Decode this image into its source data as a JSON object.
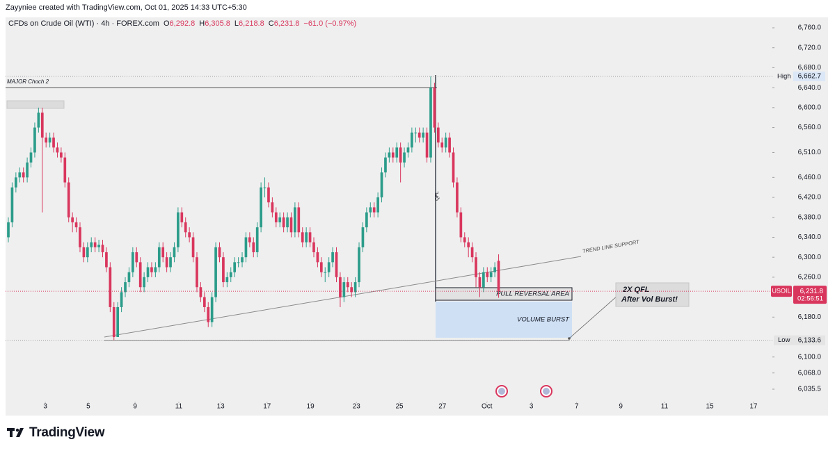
{
  "header": {
    "attribution": "Zayyniee created with TradingView.com, Oct 01, 2025 14:33 UTC+5:30",
    "symbol": "CFDs on Crude Oil (WTI) · 4h · FOREX.com",
    "ohlc": [
      {
        "key": "O",
        "value": "6,292.8"
      },
      {
        "key": "H",
        "value": "6,305.8"
      },
      {
        "key": "L",
        "value": "6,218.8"
      },
      {
        "key": "C",
        "value": "6,231.8"
      }
    ],
    "change": "−61.0 (−0.97%)"
  },
  "footer": {
    "brand": "TradingView"
  },
  "chart_data": {
    "type": "candlestick",
    "up_color": "#2b9c8a",
    "down_color": "#d9365d",
    "open": [
      6340,
      6370,
      6440,
      6460,
      6470,
      6460,
      6490,
      6510,
      6560,
      6590,
      6540,
      6530,
      6540,
      6520,
      6510,
      6500,
      6450,
      6380,
      6370,
      6360,
      6320,
      6300,
      6320,
      6330,
      6320,
      6325,
      6310,
      6280,
      6200,
      6140,
      6200,
      6230,
      6250,
      6270,
      6310,
      6290,
      6240,
      6260,
      6280,
      6270,
      6280,
      6320,
      6300,
      6280,
      6300,
      6320,
      6390,
      6370,
      6350,
      6340,
      6300,
      6240,
      6220,
      6200,
      6170,
      6220,
      6320,
      6300,
      6250,
      6260,
      6270,
      6290,
      6290,
      6300,
      6340,
      6330,
      6310,
      6360,
      6440,
      6440,
      6410,
      6390,
      6370,
      6380,
      6360,
      6380,
      6350,
      6400,
      6350,
      6330,
      6350,
      6330,
      6310,
      6290,
      6270,
      6270,
      6290,
      6310,
      6260,
      6220,
      6250,
      6240,
      6230,
      6250,
      6320,
      6360,
      6390,
      6400,
      6390,
      6420,
      6470,
      6500,
      6510,
      6500,
      6520,
      6490,
      6510,
      6520,
      6550,
      6550,
      6540,
      6550,
      6500,
      6640,
      6560,
      6530,
      6520,
      6540,
      6510,
      6450,
      6390,
      6340,
      6330,
      6320,
      6300,
      6260,
      6240,
      6270,
      6260,
      6270,
      6292.8
    ],
    "high": [
      6380,
      6450,
      6470,
      6480,
      6480,
      6500,
      6520,
      6570,
      6600,
      6600,
      6550,
      6550,
      6550,
      6530,
      6520,
      6510,
      6460,
      6390,
      6380,
      6370,
      6330,
      6330,
      6340,
      6340,
      6335,
      6335,
      6320,
      6290,
      6210,
      6210,
      6240,
      6260,
      6280,
      6320,
      6320,
      6300,
      6270,
      6290,
      6290,
      6290,
      6330,
      6330,
      6310,
      6310,
      6330,
      6400,
      6400,
      6380,
      6360,
      6350,
      6310,
      6250,
      6230,
      6210,
      6230,
      6330,
      6330,
      6310,
      6270,
      6280,
      6300,
      6300,
      6310,
      6350,
      6350,
      6340,
      6370,
      6450,
      6460,
      6450,
      6420,
      6400,
      6390,
      6390,
      6390,
      6390,
      6410,
      6410,
      6360,
      6360,
      6360,
      6340,
      6320,
      6300,
      6280,
      6300,
      6320,
      6320,
      6270,
      6260,
      6260,
      6250,
      6260,
      6330,
      6370,
      6400,
      6410,
      6410,
      6430,
      6480,
      6510,
      6520,
      6520,
      6530,
      6530,
      6520,
      6530,
      6560,
      6560,
      6560,
      6560,
      6560,
      6662.7,
      6650,
      6570,
      6540,
      6550,
      6550,
      6520,
      6460,
      6400,
      6350,
      6340,
      6330,
      6310,
      6270,
      6280,
      6280,
      6280,
      6290,
      6305.8
    ],
    "low": [
      6330,
      6360,
      6430,
      6450,
      6450,
      6450,
      6480,
      6500,
      6550,
      6390,
      6520,
      6520,
      6510,
      6500,
      6490,
      6440,
      6370,
      6350,
      6350,
      6310,
      6290,
      6290,
      6310,
      6310,
      6310,
      6300,
      6270,
      6190,
      6133.6,
      6140,
      6190,
      6220,
      6240,
      6260,
      6280,
      6230,
      6230,
      6250,
      6260,
      6260,
      6270,
      6290,
      6270,
      6270,
      6290,
      6310,
      6360,
      6340,
      6330,
      6290,
      6230,
      6210,
      6190,
      6160,
      6160,
      6210,
      6290,
      6240,
      6240,
      6250,
      6260,
      6280,
      6280,
      6290,
      6320,
      6300,
      6300,
      6350,
      6420,
      6400,
      6380,
      6360,
      6360,
      6350,
      6350,
      6340,
      6340,
      6340,
      6320,
      6320,
      6320,
      6300,
      6280,
      6260,
      6250,
      6260,
      6280,
      6250,
      6200,
      6210,
      6230,
      6220,
      6220,
      6240,
      6310,
      6350,
      6380,
      6380,
      6380,
      6410,
      6460,
      6490,
      6490,
      6490,
      6450,
      6480,
      6500,
      6510,
      6530,
      6530,
      6530,
      6490,
      6490,
      6550,
      6520,
      6510,
      6510,
      6500,
      6440,
      6380,
      6330,
      6320,
      6300,
      6290,
      6240,
      6220,
      6230,
      6250,
      6250,
      6260,
      6218.8
    ],
    "close": [
      6370,
      6440,
      6460,
      6470,
      6460,
      6490,
      6510,
      6560,
      6590,
      6540,
      6530,
      6540,
      6520,
      6510,
      6500,
      6450,
      6380,
      6370,
      6360,
      6320,
      6300,
      6320,
      6330,
      6320,
      6325,
      6310,
      6280,
      6200,
      6140,
      6200,
      6230,
      6250,
      6270,
      6310,
      6290,
      6240,
      6260,
      6280,
      6270,
      6280,
      6320,
      6300,
      6280,
      6300,
      6320,
      6390,
      6370,
      6350,
      6340,
      6300,
      6240,
      6220,
      6200,
      6170,
      6220,
      6320,
      6300,
      6250,
      6260,
      6270,
      6290,
      6290,
      6300,
      6340,
      6330,
      6310,
      6360,
      6440,
      6440,
      6410,
      6390,
      6370,
      6380,
      6360,
      6380,
      6350,
      6400,
      6350,
      6330,
      6350,
      6330,
      6310,
      6290,
      6270,
      6270,
      6290,
      6310,
      6260,
      6220,
      6250,
      6240,
      6230,
      6250,
      6320,
      6360,
      6390,
      6400,
      6390,
      6420,
      6470,
      6500,
      6510,
      6500,
      6520,
      6490,
      6510,
      6520,
      6550,
      6550,
      6540,
      6550,
      6500,
      6640,
      6560,
      6530,
      6520,
      6540,
      6510,
      6450,
      6390,
      6340,
      6330,
      6320,
      6300,
      6260,
      6240,
      6270,
      6260,
      6270,
      6280,
      6231.8
    ],
    "xlim": [
      -0.74,
      202.6
    ],
    "xticks": [
      {
        "value": 9.8,
        "label": "3"
      },
      {
        "value": 21.2,
        "label": "5"
      },
      {
        "value": 33.6,
        "label": "9"
      },
      {
        "value": 45.2,
        "label": "11"
      },
      {
        "value": 56.3,
        "label": "13"
      },
      {
        "value": 68.6,
        "label": "17"
      },
      {
        "value": 80.1,
        "label": "19"
      },
      {
        "value": 92.3,
        "label": "23"
      },
      {
        "value": 103.7,
        "label": "25"
      },
      {
        "value": 115.1,
        "label": "27"
      },
      {
        "value": 126.9,
        "label": "Oct"
      },
      {
        "value": 138.7,
        "label": "3"
      },
      {
        "value": 150.7,
        "label": "7"
      },
      {
        "value": 162.4,
        "label": "9"
      },
      {
        "value": 174.0,
        "label": "11"
      },
      {
        "value": 186.0,
        "label": "15"
      },
      {
        "value": 197.6,
        "label": "17"
      }
    ],
    "ylim": [
      6021.6,
      6780.9
    ],
    "yticks": [
      {
        "value": 6760,
        "label": "6,760.0"
      },
      {
        "value": 6720,
        "label": "6,720.0"
      },
      {
        "value": 6680,
        "label": "6,680.0"
      },
      {
        "value": 6640,
        "label": "6,640.0"
      },
      {
        "value": 6600,
        "label": "6,600.0"
      },
      {
        "value": 6560,
        "label": "6,560.0"
      },
      {
        "value": 6510,
        "label": "6,510.0"
      },
      {
        "value": 6460,
        "label": "6,460.0"
      },
      {
        "value": 6420,
        "label": "6,420.0"
      },
      {
        "value": 6380,
        "label": "6,380.0"
      },
      {
        "value": 6340,
        "label": "6,340.0"
      },
      {
        "value": 6300,
        "label": "6,300.0"
      },
      {
        "value": 6260,
        "label": "6,260.0"
      },
      {
        "value": 6180,
        "label": "6,180.0"
      },
      {
        "value": 6100,
        "label": "6,100.0"
      },
      {
        "value": 6068,
        "label": "6,068.0"
      },
      {
        "value": 6035.5,
        "label": "6,035.5"
      }
    ],
    "high_marker": {
      "name": "High",
      "value": 6662.7,
      "label": "6,662.7"
    },
    "low_marker": {
      "name": "Low",
      "value": 6133.6,
      "label": "6,133.6"
    },
    "last_price": {
      "name": "USOIL",
      "value": 6231.8,
      "label": "6,231.8",
      "countdown": "02:56:51"
    },
    "annotations": {
      "major_choch": "MAJOR Choch 2",
      "qfl": "QFL",
      "trend_line": "TREND LINE SUPPORT",
      "pull_reversal": "PULL REVERSAL AREA",
      "volume_burst": "VOLUME BURST",
      "note": [
        "2X QFL",
        "After Vol Burst!"
      ]
    }
  }
}
